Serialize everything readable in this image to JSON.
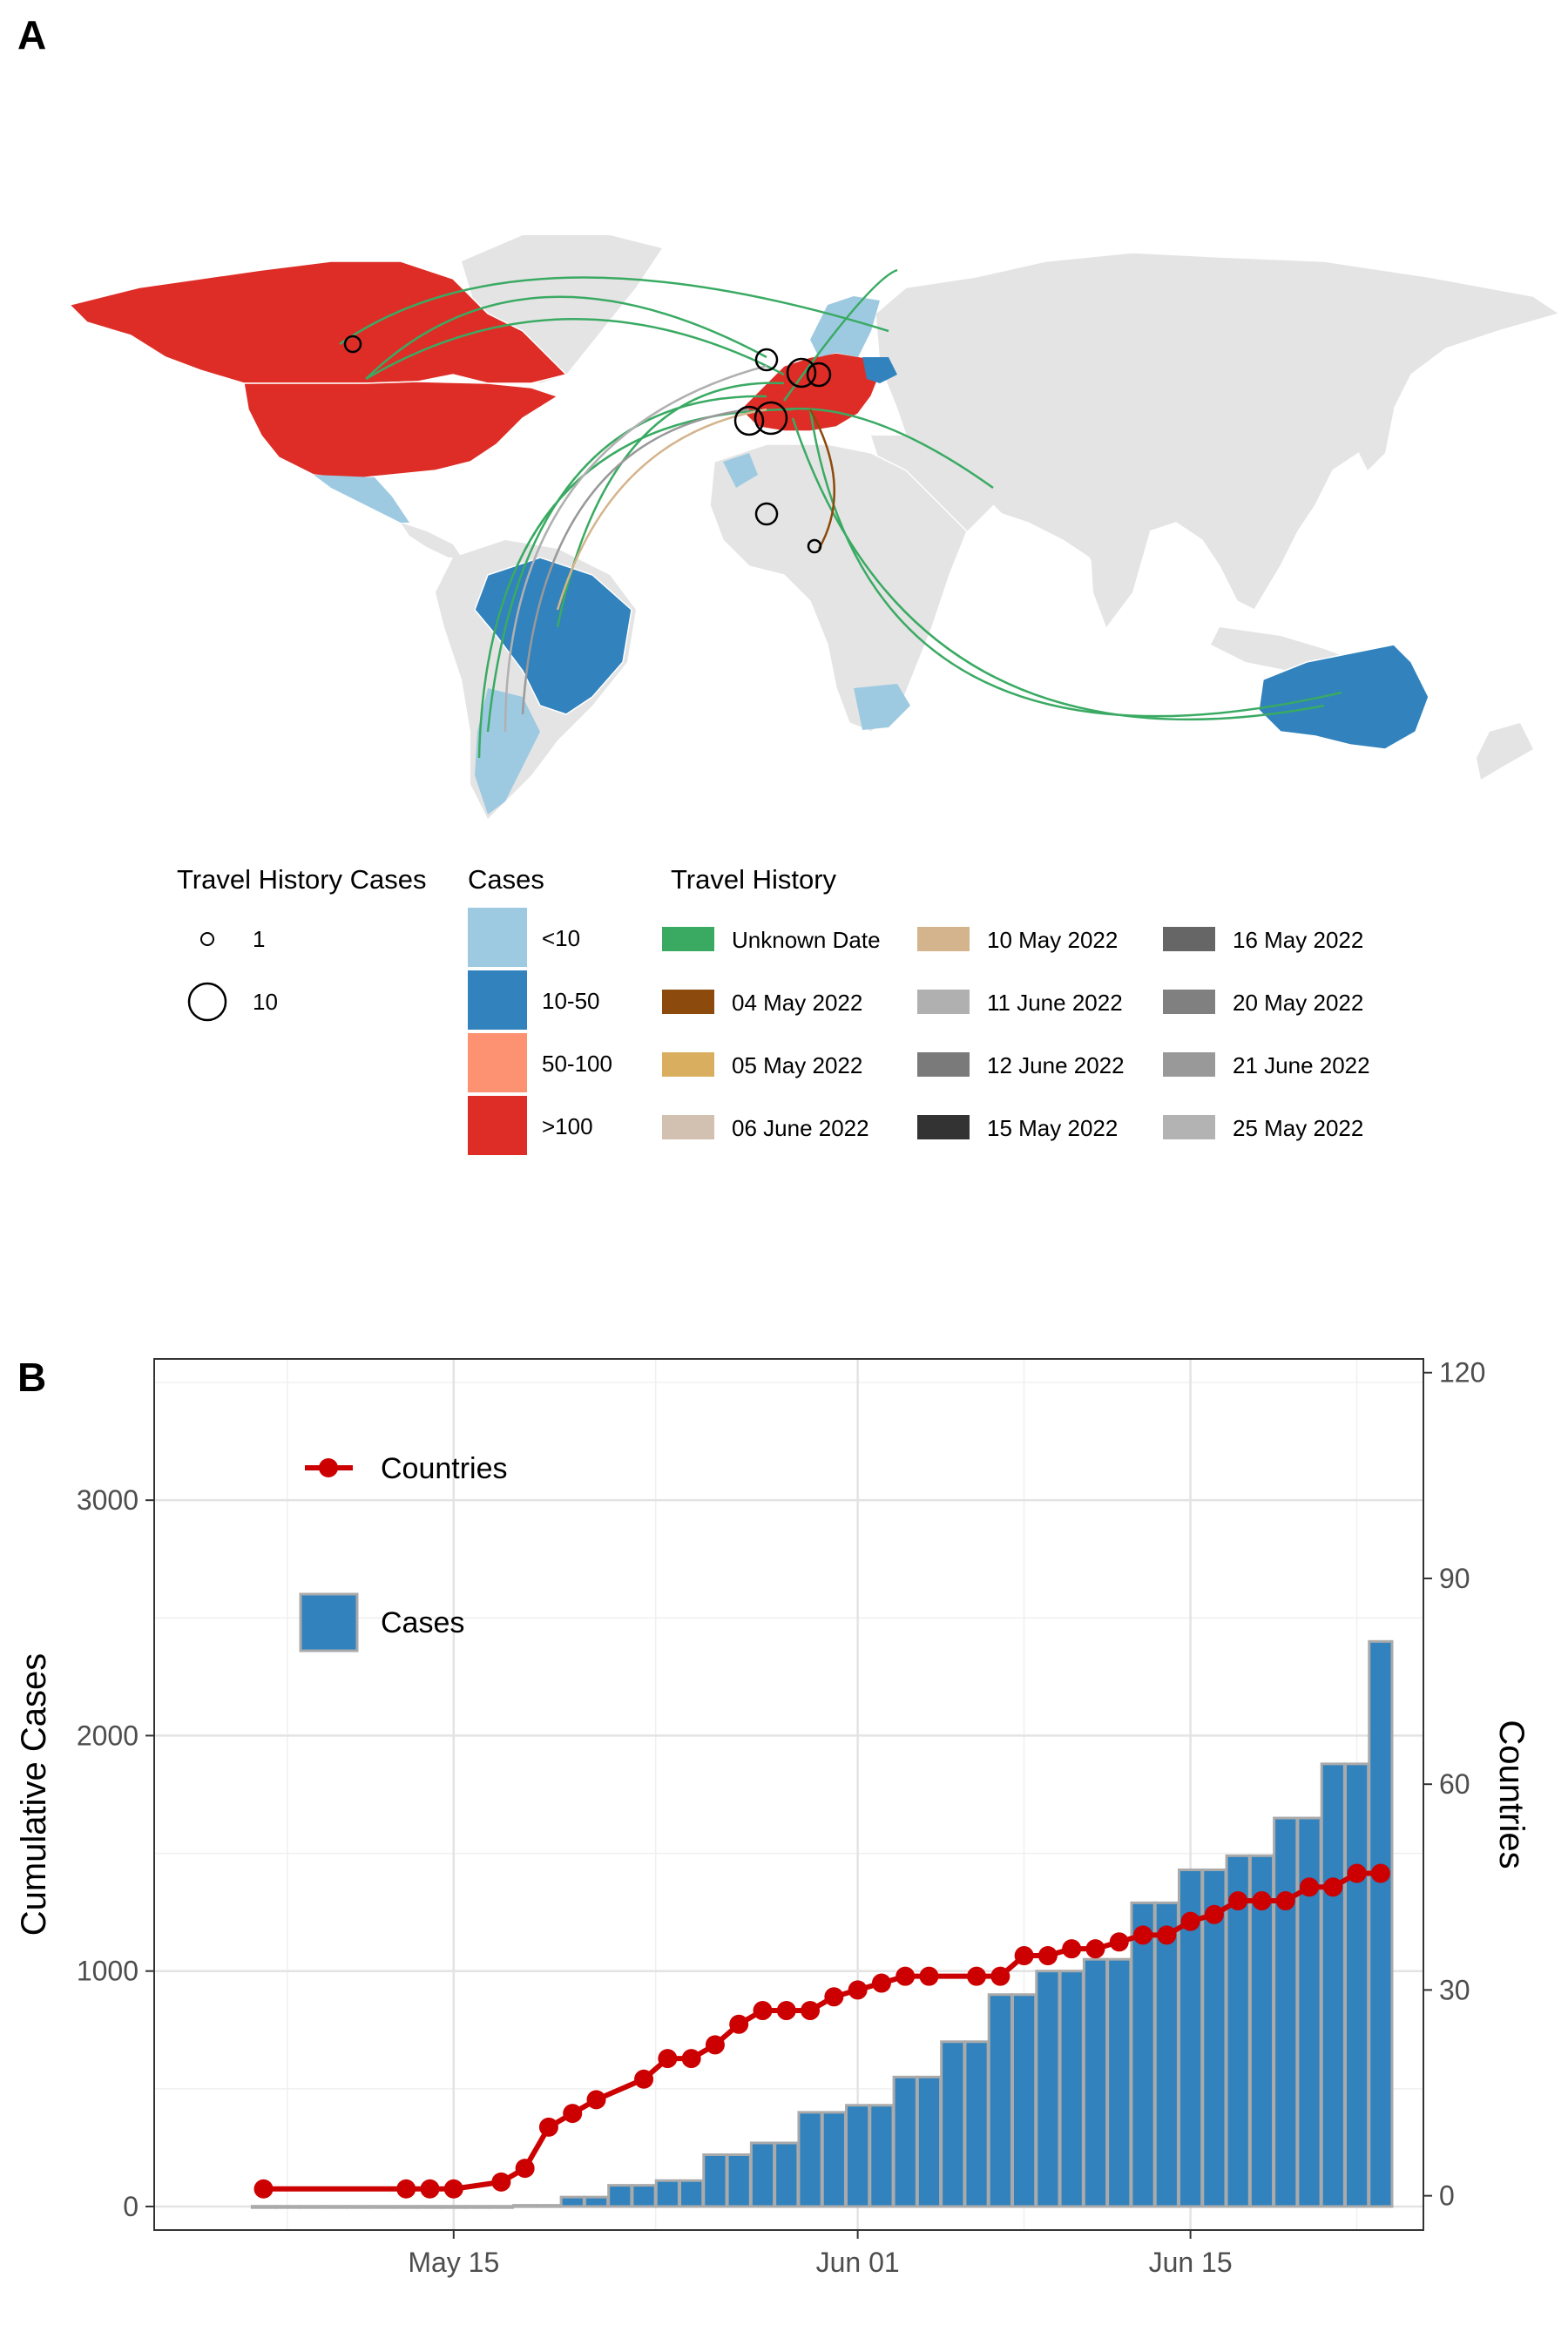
{
  "panel_a": {
    "label": "A",
    "legend_travel_cases": {
      "title": "Travel History Cases",
      "items": [
        {
          "label": "1",
          "value": 1
        },
        {
          "label": "10",
          "value": 10
        }
      ]
    },
    "legend_cases": {
      "title": "Cases",
      "items": [
        {
          "label": "<10",
          "color": "#9ecae1"
        },
        {
          "label": "10-50",
          "color": "#3182bd"
        },
        {
          "label": "50-100",
          "color": "#fc9272"
        },
        {
          "label": ">100",
          "color": "#de2d26"
        }
      ]
    },
    "legend_travel_history": {
      "title": "Travel History",
      "items": [
        {
          "label": "Unknown Date",
          "color": "#3aaa63"
        },
        {
          "label": "04 May 2022",
          "color": "#8c4a0c"
        },
        {
          "label": "05 May 2022",
          "color": "#d9ae5f"
        },
        {
          "label": "06 June 2022",
          "color": "#d2c0b0"
        },
        {
          "label": "10 May 2022",
          "color": "#d4b48c"
        },
        {
          "label": "11 June 2022",
          "color": "#b0b0b0"
        },
        {
          "label": "12 June 2022",
          "color": "#7a7a7a"
        },
        {
          "label": "15 May 2022",
          "color": "#333333"
        },
        {
          "label": "16 May 2022",
          "color": "#666666"
        },
        {
          "label": "20 May 2022",
          "color": "#808080"
        },
        {
          "label": "21 June 2022",
          "color": "#999999"
        },
        {
          "label": "25 May 2022",
          "color": "#b3b3b3"
        }
      ]
    }
  },
  "panel_b": {
    "label": "B",
    "legend": {
      "line_label": "Countries",
      "bar_label": "Cases"
    }
  },
  "chart_data": {
    "type": "bar",
    "title": "",
    "xlabel": "",
    "ylabel": "Cumulative Cases",
    "y2label": "Countries",
    "x_ticks": [
      {
        "label": "May 15",
        "day": 15
      },
      {
        "label": "Jun 01",
        "day": 32
      },
      {
        "label": "Jun 15",
        "day": 46
      }
    ],
    "ylim": [
      -100,
      3600
    ],
    "y_ticks": [
      0,
      1000,
      2000,
      3000
    ],
    "y2lim": [
      -5,
      122
    ],
    "y2_ticks": [
      0,
      30,
      60,
      90,
      120
    ],
    "xlim": [
      2.4,
      55.8
    ],
    "bar_color": "#3182bd",
    "line_color": "#cc0000",
    "series": [
      {
        "name": "Cases",
        "type": "bar",
        "days": [
          7,
          8,
          9,
          10,
          11,
          12,
          13,
          14,
          15,
          16,
          17,
          18,
          19,
          20,
          21,
          22,
          23,
          24,
          25,
          26,
          27,
          28,
          29,
          30,
          31,
          32,
          33,
          34,
          35,
          36,
          37,
          38,
          39,
          40,
          41,
          42,
          43,
          44,
          45,
          46,
          47,
          48,
          49,
          50,
          51,
          52,
          53,
          54
        ],
        "values": [
          1,
          1,
          1,
          1,
          1,
          1,
          1,
          1,
          1,
          1,
          1,
          5,
          5,
          40,
          40,
          90,
          90,
          110,
          110,
          220,
          220,
          270,
          270,
          400,
          400,
          430,
          430,
          550,
          550,
          700,
          700,
          900,
          900,
          1000,
          1000,
          1050,
          1050,
          1290,
          1290,
          1430,
          1430,
          1490,
          1490,
          1650,
          1650,
          1880,
          1880,
          2400
        ]
      },
      {
        "name": "Countries",
        "type": "line",
        "points": [
          [
            7,
            1
          ],
          [
            13,
            1
          ],
          [
            14,
            1
          ],
          [
            15,
            1
          ],
          [
            17,
            2
          ],
          [
            18,
            4
          ],
          [
            19,
            10
          ],
          [
            20,
            12
          ],
          [
            21,
            14
          ],
          [
            23,
            17
          ],
          [
            24,
            20
          ],
          [
            25,
            20
          ],
          [
            26,
            22
          ],
          [
            27,
            25
          ],
          [
            28,
            27
          ],
          [
            29,
            27
          ],
          [
            30,
            27
          ],
          [
            31,
            29
          ],
          [
            32,
            30
          ],
          [
            33,
            31
          ],
          [
            34,
            32
          ],
          [
            35,
            32
          ],
          [
            37,
            32
          ],
          [
            38,
            32
          ],
          [
            39,
            35
          ],
          [
            40,
            35
          ],
          [
            41,
            36
          ],
          [
            42,
            36
          ],
          [
            43,
            37
          ],
          [
            44,
            38
          ],
          [
            45,
            38
          ],
          [
            46,
            40
          ],
          [
            47,
            41
          ],
          [
            48,
            43
          ],
          [
            49,
            43
          ],
          [
            50,
            43
          ],
          [
            51,
            45
          ],
          [
            52,
            45
          ],
          [
            53,
            47
          ],
          [
            54,
            47
          ]
        ]
      }
    ]
  }
}
